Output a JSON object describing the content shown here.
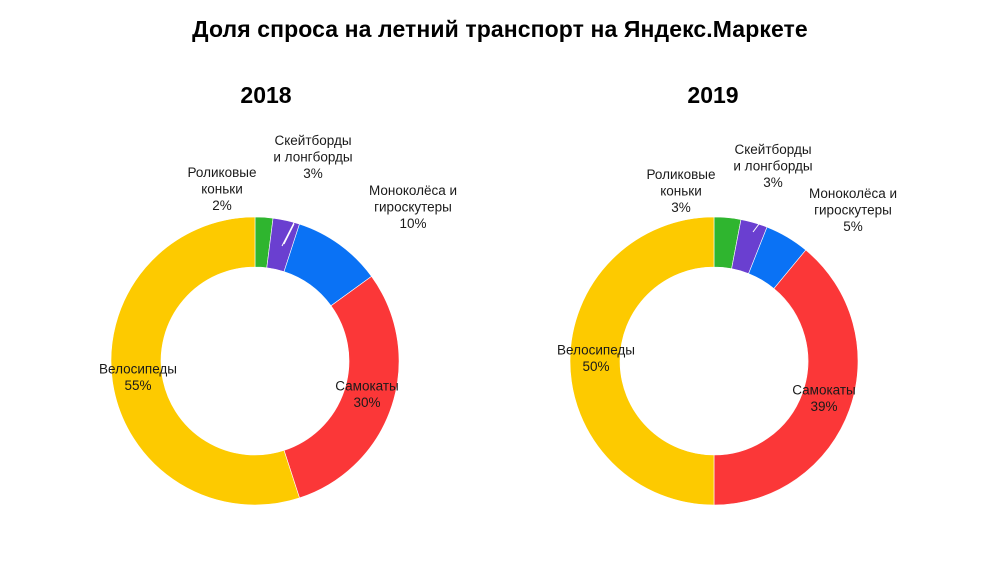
{
  "title": "Доля спроса на летний транспорт на Яндекс.Маркете",
  "chart_data": [
    {
      "type": "pie",
      "title": "2018",
      "donut": true,
      "start_angle_deg": 0,
      "direction": "clockwise",
      "slices": [
        {
          "name": "Роликовые коньки",
          "lines": [
            "Роликовые",
            "коньки",
            "2%"
          ],
          "value": 2,
          "color": "#2fb52f"
        },
        {
          "name": "Скейтборды и лонгборды",
          "lines": [
            "Скейтборды",
            "и лонгборды",
            "3%"
          ],
          "value": 3,
          "color": "#6a3fd0"
        },
        {
          "name": "Моноколёса и гироскутеры",
          "lines": [
            "Моноколёса и",
            "гироскутеры",
            "10%"
          ],
          "value": 10,
          "color": "#0a72f5"
        },
        {
          "name": "Самокаты",
          "lines": [
            "Самокаты",
            "30%"
          ],
          "value": 30,
          "color": "#fb3738"
        },
        {
          "name": "Велосипеды",
          "lines": [
            "Велосипеды",
            "55%"
          ],
          "value": 55,
          "color": "#fdca00"
        }
      ]
    },
    {
      "type": "pie",
      "title": "2019",
      "donut": true,
      "start_angle_deg": 0,
      "direction": "clockwise",
      "slices": [
        {
          "name": "Роликовые коньки",
          "lines": [
            "Роликовые",
            "коньки",
            "3%"
          ],
          "value": 3,
          "color": "#2fb52f"
        },
        {
          "name": "Скейтборды и лонгборды",
          "lines": [
            "Скейтборды",
            "и лонгборды",
            "3%"
          ],
          "value": 3,
          "color": "#6a3fd0"
        },
        {
          "name": "Моноколёса и гироскутеры",
          "lines": [
            "Моноколёса и",
            "гироскутеры",
            "5%"
          ],
          "value": 5,
          "color": "#0a72f5"
        },
        {
          "name": "Самокаты",
          "lines": [
            "Самокаты",
            "39%"
          ],
          "value": 39,
          "color": "#fb3738"
        },
        {
          "name": "Велосипеды",
          "lines": [
            "Велосипеды",
            "50%"
          ],
          "value": 50,
          "color": "#fdca00"
        }
      ]
    }
  ]
}
